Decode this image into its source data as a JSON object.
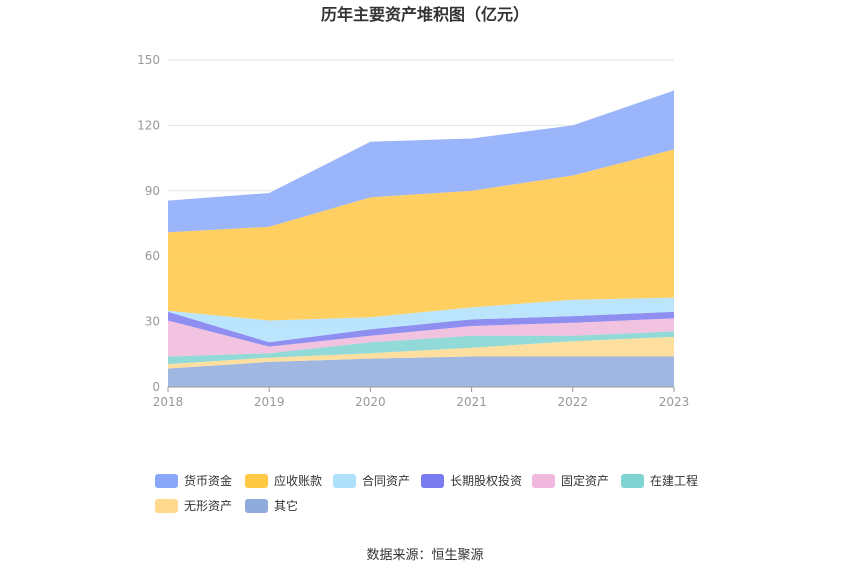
{
  "chart_data": {
    "type": "area",
    "stacked": true,
    "title": "历年主要资产堆积图（亿元）",
    "x": [
      "2018",
      "2019",
      "2020",
      "2021",
      "2022",
      "2023"
    ],
    "yticks": [
      "0",
      "30",
      "60",
      "90",
      "120",
      "150"
    ],
    "ylim": [
      0,
      150
    ],
    "grid": true,
    "legend_position": "bottom",
    "series": [
      {
        "name": "其它",
        "color": "#8faadc",
        "values": [
          8.5,
          11.5,
          13,
          14,
          14,
          14
        ]
      },
      {
        "name": "无形资产",
        "color": "#ffd98e",
        "values": [
          2,
          2,
          2.5,
          4,
          7,
          9
        ]
      },
      {
        "name": "在建工程",
        "color": "#7fd3d1",
        "values": [
          3.5,
          2,
          5,
          5.5,
          2.5,
          2.5
        ]
      },
      {
        "name": "固定资产",
        "color": "#f0b8dc",
        "values": [
          16.5,
          3,
          3,
          4.5,
          6,
          6
        ]
      },
      {
        "name": "长期股权投资",
        "color": "#7b7bf0",
        "values": [
          4,
          2,
          3,
          3,
          3,
          3
        ]
      },
      {
        "name": "合同资产",
        "color": "#aee0fb",
        "values": [
          0.5,
          10,
          5.5,
          5.5,
          7.5,
          6.5
        ]
      },
      {
        "name": "应收账款",
        "color": "#ffc845",
        "values": [
          36,
          43,
          55,
          53.5,
          57,
          68
        ]
      },
      {
        "name": "货币资金",
        "color": "#8aa8fa",
        "values": [
          14.5,
          15.5,
          25.5,
          24,
          23,
          27
        ]
      }
    ],
    "legend_order": [
      "货币资金",
      "应收账款",
      "合同资产",
      "长期股权投资",
      "固定资产",
      "在建工程",
      "无形资产",
      "其它"
    ]
  },
  "footer": {
    "source": "数据来源：恒生聚源"
  }
}
